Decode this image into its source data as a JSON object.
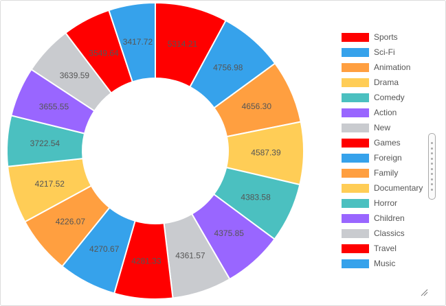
{
  "chart_data": {
    "type": "pie",
    "donut": true,
    "categories": [
      "Sports",
      "Sci-Fi",
      "Animation",
      "Drama",
      "Comedy",
      "Action",
      "New",
      "Games",
      "Foreign",
      "Family",
      "Documentary",
      "Horror",
      "Children",
      "Classics",
      "Travel",
      "Music"
    ],
    "values": [
      5314.21,
      4756.98,
      4656.3,
      4587.39,
      4383.58,
      4375.85,
      4361.57,
      4281.33,
      4270.67,
      4226.07,
      4217.52,
      3722.54,
      3655.55,
      3639.59,
      3549.64,
      3417.72
    ],
    "value_labels": [
      "5314.21",
      "4756.98",
      "4656.30",
      "4587.39",
      "4383.58",
      "4375.85",
      "4361.57",
      "4281.33",
      "4270.67",
      "4226.07",
      "4217.52",
      "3722.54",
      "3655.55",
      "3639.59",
      "3549.64",
      "3417.72"
    ],
    "colors": [
      "#ff0000",
      "#36a2eb",
      "#ff9f40",
      "#ffcd56",
      "#4bc0c0",
      "#9966ff",
      "#c9cbcf",
      "#ff0000",
      "#36a2eb",
      "#ff9f40",
      "#ffcd56",
      "#4bc0c0",
      "#9966ff",
      "#c9cbcf",
      "#ff0000",
      "#36a2eb"
    ],
    "legend_position": "right",
    "legend_scrollable": true,
    "start_angle": "top",
    "direction": "clockwise"
  }
}
